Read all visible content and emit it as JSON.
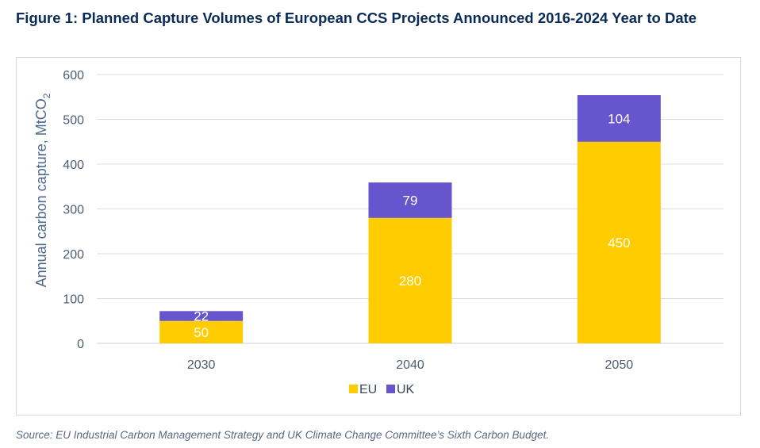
{
  "figure": {
    "title": "Figure 1: Planned Capture Volumes of European CCS Projects Announced 2016-2024 Year to Date",
    "source": "Source: EU Industrial Carbon Management Strategy and UK Climate Change Committee’s Sixth Carbon Budget."
  },
  "chart_data": {
    "type": "bar",
    "stacked": true,
    "categories": [
      "2030",
      "2040",
      "2050"
    ],
    "series": [
      {
        "name": "EU",
        "values": [
          50,
          280,
          450
        ],
        "color": "#ffcc00"
      },
      {
        "name": "UK",
        "values": [
          22,
          79,
          104
        ],
        "color": "#6655cc"
      }
    ],
    "ylabel_main": "Annual carbon capture, MtCO",
    "ylabel_sub": "2",
    "ylim": [
      0,
      600
    ],
    "yticks": [
      0,
      100,
      200,
      300,
      400,
      500,
      600
    ],
    "grid": true,
    "legend_position": "bottom",
    "data_labels": true,
    "axis_text_color": "#4d5b72",
    "gridline_color": "#d9dee6"
  }
}
